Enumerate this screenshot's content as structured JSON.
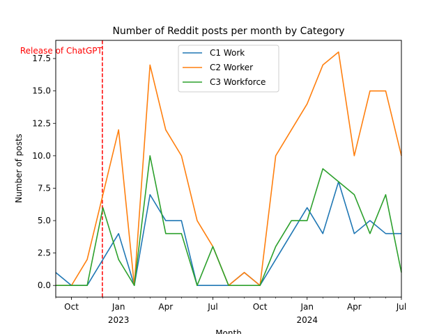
{
  "chart_data": {
    "type": "line",
    "title": "Number of Reddit posts per month by Category",
    "xlabel": "Month",
    "ylabel": "Number of posts",
    "x": [
      "2022-09",
      "2022-10",
      "2022-11",
      "2022-12",
      "2023-01",
      "2023-02",
      "2023-03",
      "2023-04",
      "2023-05",
      "2023-06",
      "2023-07",
      "2023-08",
      "2023-09",
      "2023-10",
      "2023-11",
      "2023-12",
      "2024-01",
      "2024-02",
      "2024-03",
      "2024-04",
      "2024-05",
      "2024-06",
      "2024-07"
    ],
    "series": [
      {
        "name": "C1 Work",
        "color": "#1f77b4",
        "values": [
          1,
          0,
          0,
          2,
          4,
          0,
          7,
          5,
          5,
          0,
          0,
          0,
          1,
          0,
          2,
          4,
          6,
          4,
          8,
          4,
          5,
          4,
          4
        ]
      },
      {
        "name": "C2 Worker",
        "color": "#ff7f0e",
        "values": [
          0,
          0,
          2,
          7,
          12,
          0,
          17,
          12,
          10,
          5,
          3,
          0,
          1,
          0,
          10,
          12,
          14,
          17,
          18,
          10,
          15,
          15,
          10
        ]
      },
      {
        "name": "C3 Workforce",
        "color": "#2ca02c",
        "values": [
          0,
          0,
          0,
          6,
          2,
          0,
          10,
          4,
          4,
          0,
          3,
          0,
          0,
          0,
          3,
          5,
          5,
          9,
          8,
          7,
          4,
          7,
          1
        ]
      }
    ],
    "ylim": [
      -0.9,
      18.9
    ],
    "xlim": [
      "2022-09",
      "2024-07"
    ],
    "x_ticks": [
      {
        "x": "2022-10",
        "label": "Oct",
        "sub": ""
      },
      {
        "x": "2023-01",
        "label": "Jan",
        "sub": "2023"
      },
      {
        "x": "2023-04",
        "label": "Apr",
        "sub": ""
      },
      {
        "x": "2023-07",
        "label": "Jul",
        "sub": ""
      },
      {
        "x": "2023-10",
        "label": "Oct",
        "sub": ""
      },
      {
        "x": "2024-01",
        "label": "Jan",
        "sub": "2024"
      },
      {
        "x": "2024-04",
        "label": "Apr",
        "sub": ""
      },
      {
        "x": "2024-07",
        "label": "Jul",
        "sub": ""
      }
    ],
    "y_ticks": [
      "0.0",
      "2.5",
      "5.0",
      "7.5",
      "10.0",
      "12.5",
      "15.0",
      "17.5"
    ],
    "annotation": {
      "label": "Release of ChatGPT",
      "x": "2022-11-30",
      "color": "#ff0000"
    },
    "grid": false,
    "legend_position": "upper-center"
  }
}
